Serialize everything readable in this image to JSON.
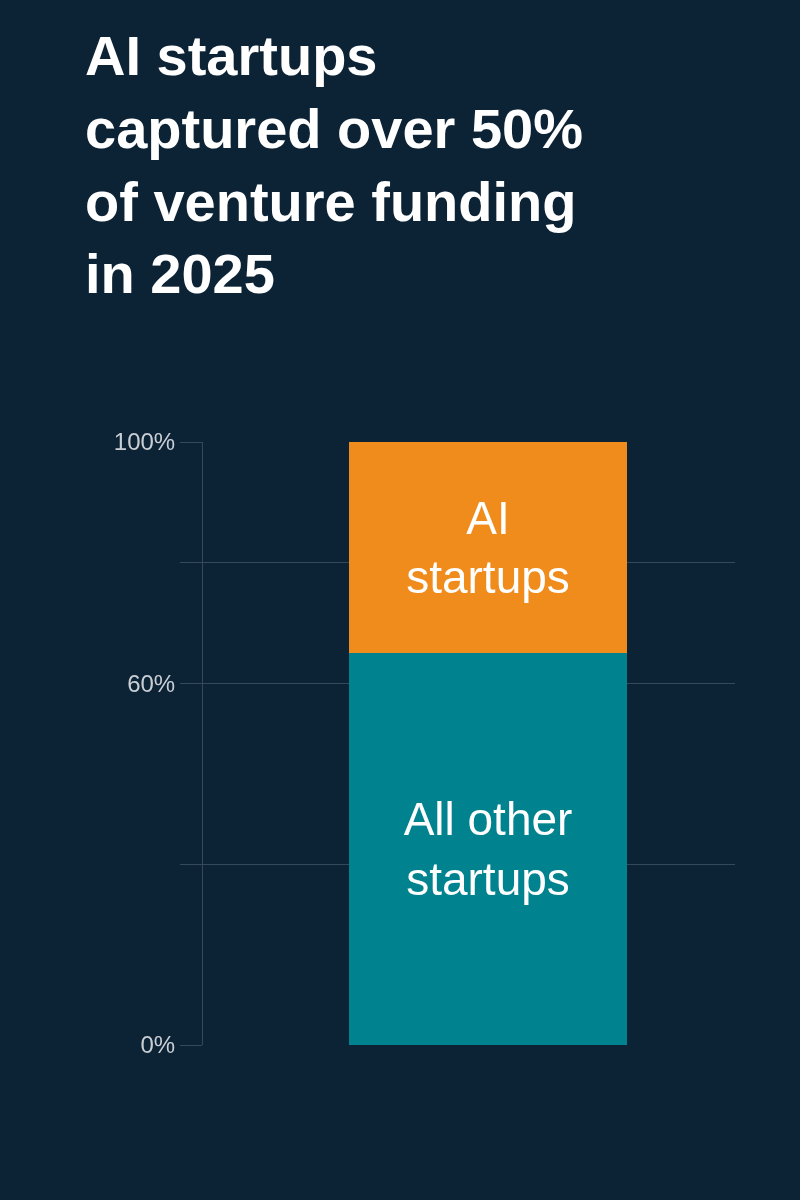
{
  "chart_data": {
    "type": "bar",
    "title": "AI startups\ncaptured over 50%\nof venture funding\nin 2025",
    "categories": [
      null
    ],
    "stacked": true,
    "series": [
      {
        "name": "All other startups",
        "color": "#00838f",
        "values": [
          65
        ]
      },
      {
        "name": "AI startups",
        "color": "#f08c1c",
        "values": [
          35
        ]
      }
    ],
    "ylim": [
      0,
      100
    ],
    "yticks": [
      {
        "value": 0,
        "label": "0%"
      },
      {
        "value": 30,
        "label": null
      },
      {
        "value": 60,
        "label": "60%"
      },
      {
        "value": 80,
        "label": null
      },
      {
        "value": 100,
        "label": "100%"
      }
    ],
    "grid": "y",
    "legend": false
  }
}
